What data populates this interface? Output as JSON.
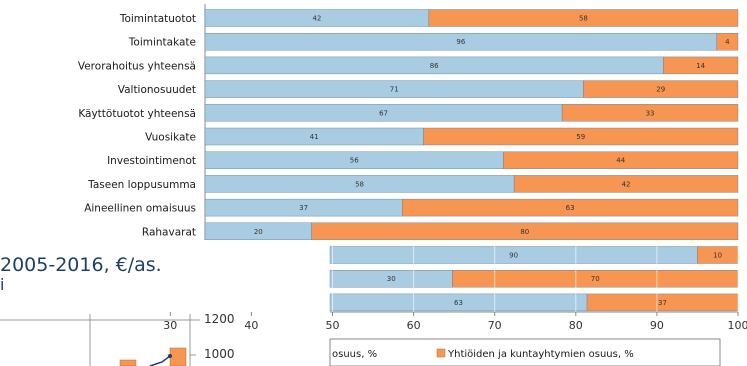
{
  "chart_data": {
    "type": "bar",
    "stacked": "percent",
    "orientation": "horizontal",
    "categories": [
      "Toimintatuotot",
      "Toimintakate",
      "Verorahoitus yhteensä",
      "Valtionosuudet",
      "Käyttötuotot yhteensä",
      "Vuosikate",
      "Investointimenot",
      "Taseen loppusumma",
      "Aineellinen omaisuus",
      "Rahavarat",
      "",
      "",
      ""
    ],
    "series": [
      {
        "name": "",
        "color": "#a9cce3",
        "values": [
          42,
          96,
          86,
          71,
          67,
          41,
          56,
          58,
          37,
          20,
          90,
          30,
          63
        ]
      },
      {
        "name": "Yhtiöiden ja kuntayhtymien osuus, %",
        "color": "#f79552",
        "values": [
          58,
          4,
          14,
          29,
          33,
          59,
          44,
          42,
          63,
          80,
          10,
          70,
          37
        ]
      }
    ],
    "x_ticks": [
      "30",
      "40",
      "50",
      "60",
      "70",
      "80",
      "90",
      "100"
    ],
    "xlim": [
      0,
      100
    ],
    "legend": [
      {
        "label": "osuus, %",
        "color": "#a9cce3"
      },
      {
        "label": "Yhtiöiden ja kuntayhtymien osuus, %",
        "color": "#f79552"
      }
    ],
    "legend_position": "bottom",
    "grid": true
  },
  "background": {
    "title": "2005-2016, €/as.",
    "subtitle": "i",
    "y_ticks": [
      "1200",
      "1000"
    ]
  }
}
